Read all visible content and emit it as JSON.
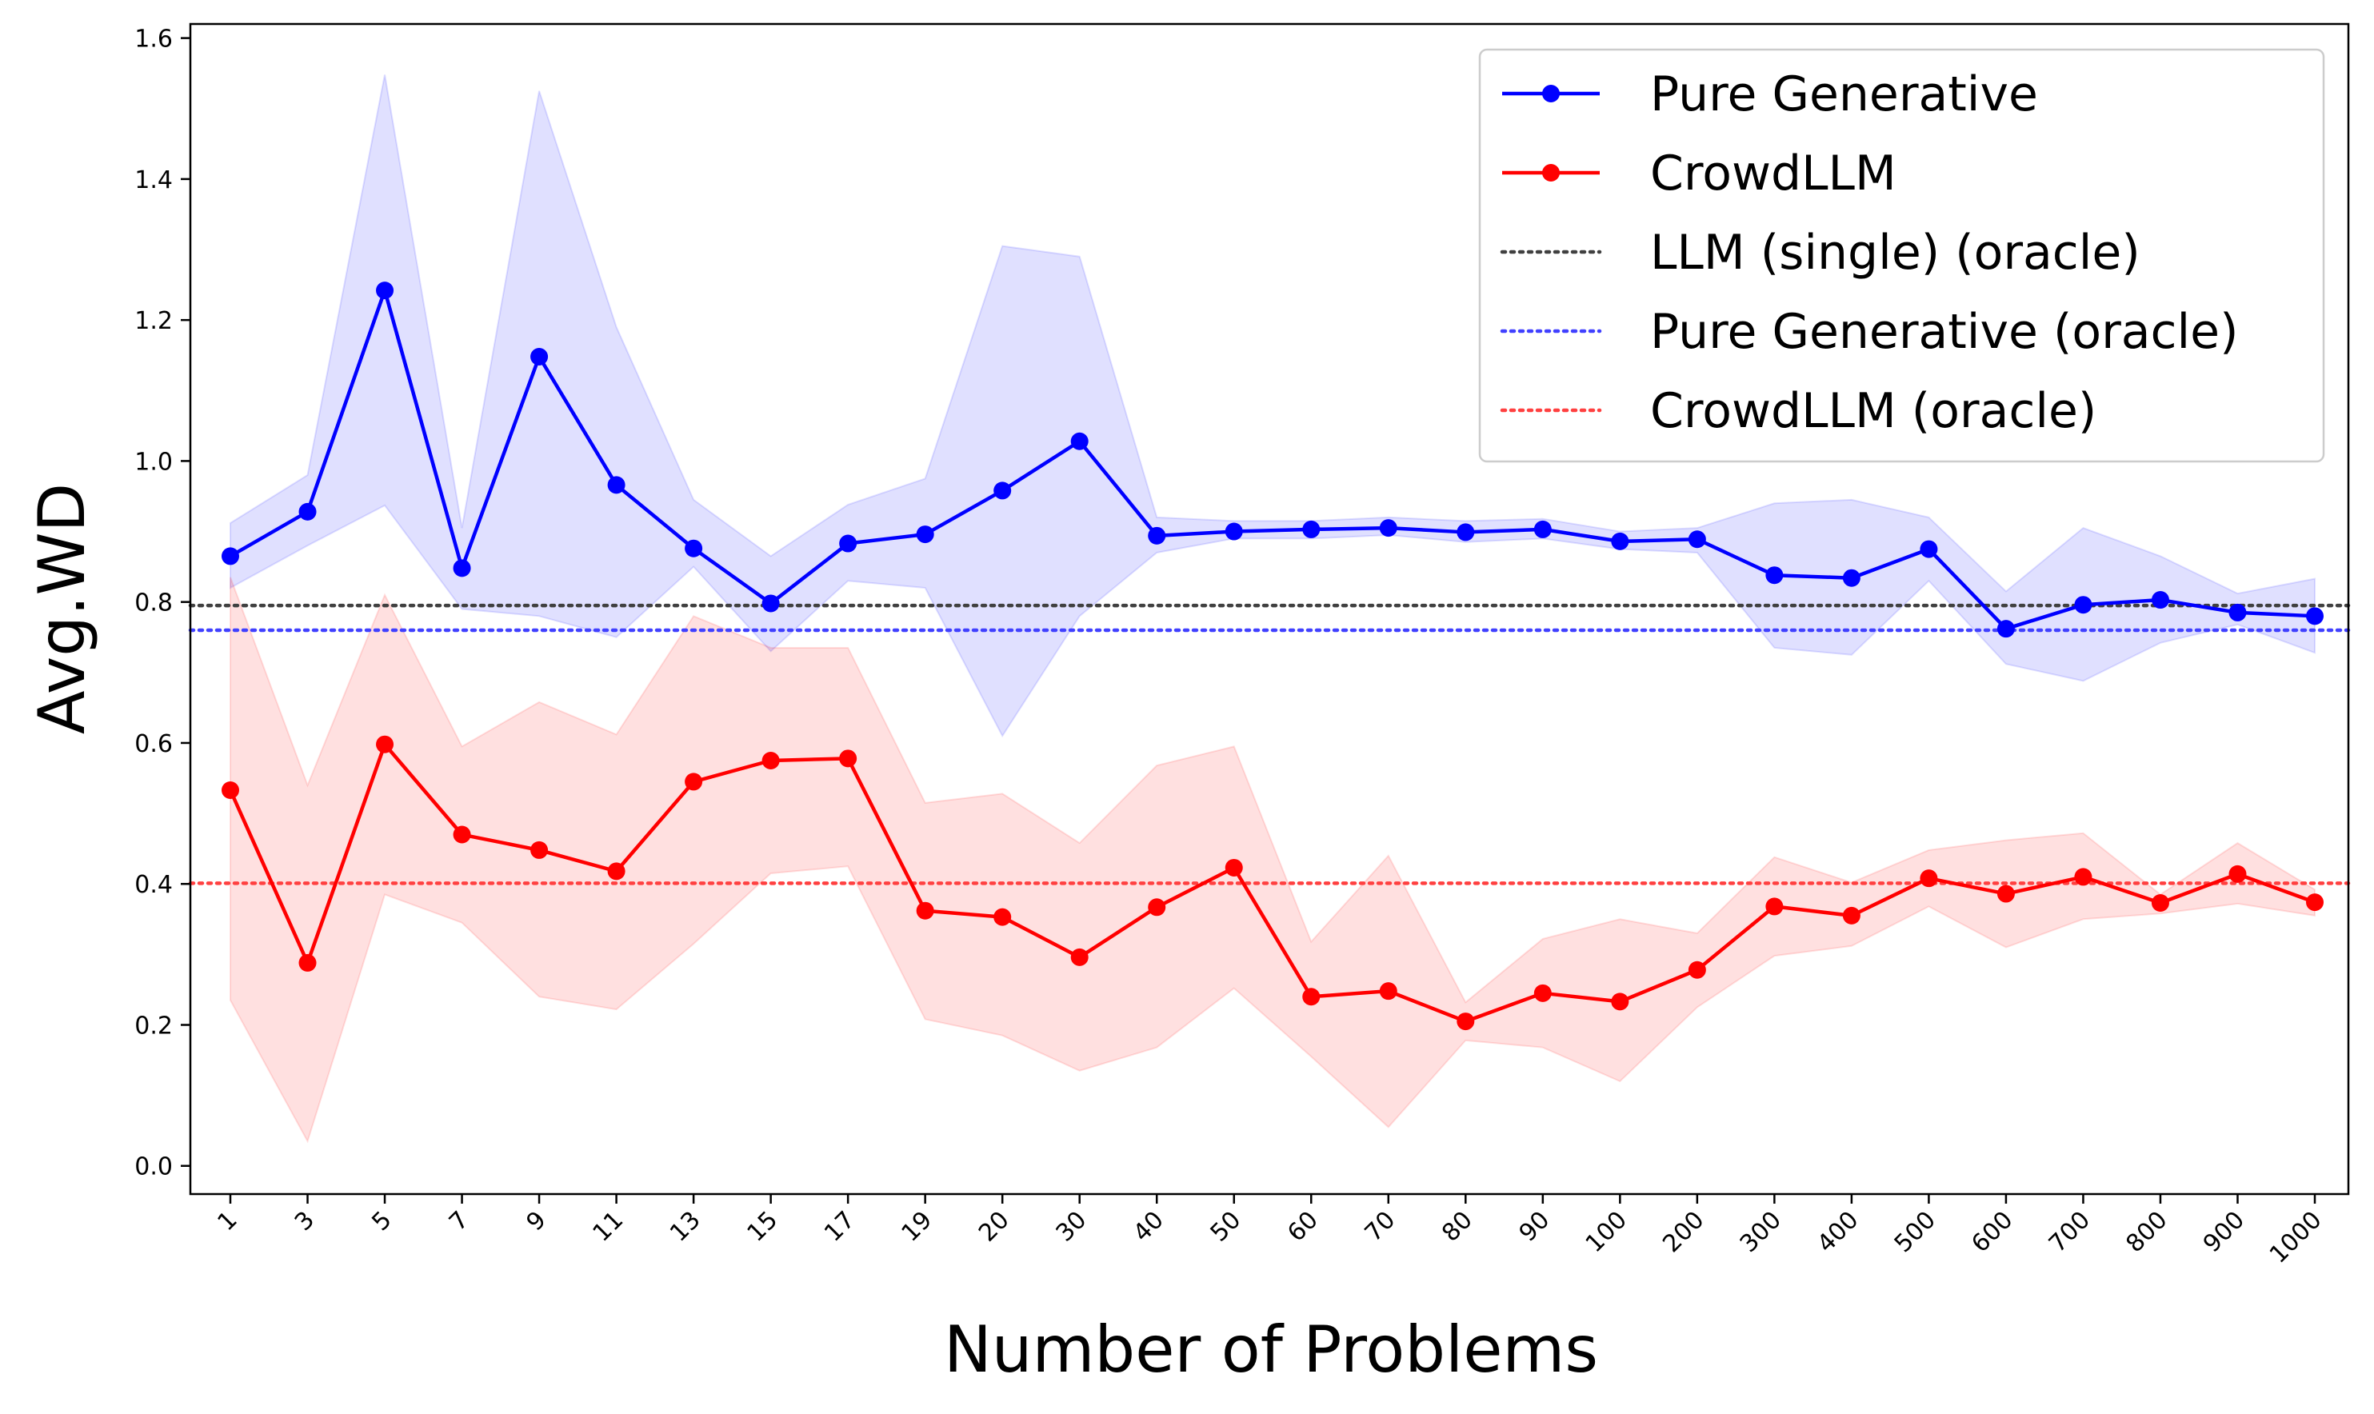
{
  "chart_data": {
    "type": "line",
    "title": "",
    "xlabel": "Number of Problems",
    "ylabel": "Avg.WD",
    "categories": [
      "1",
      "3",
      "5",
      "7",
      "9",
      "11",
      "13",
      "15",
      "17",
      "19",
      "20",
      "30",
      "40",
      "50",
      "60",
      "70",
      "80",
      "90",
      "100",
      "200",
      "300",
      "400",
      "500",
      "600",
      "700",
      "800",
      "900",
      "1000"
    ],
    "ylim": [
      -0.04,
      1.62
    ],
    "yticks": [
      "0.0",
      "0.2",
      "0.4",
      "0.6",
      "0.8",
      "1.0",
      "1.2",
      "1.4",
      "1.6"
    ],
    "grid": false,
    "legend_position": "top-right",
    "series": [
      {
        "name": "Pure Generative",
        "color": "#0000ff",
        "values": [
          0.865,
          0.928,
          1.242,
          0.848,
          1.148,
          0.966,
          0.876,
          0.798,
          0.883,
          0.896,
          0.958,
          1.028,
          0.894,
          0.9,
          0.903,
          0.905,
          0.899,
          0.903,
          0.886,
          0.889,
          0.838,
          0.834,
          0.875,
          0.762,
          0.796,
          0.803,
          0.785,
          0.78
        ],
        "lower": [
          0.82,
          0.88,
          0.937,
          0.79,
          0.78,
          0.75,
          0.85,
          0.73,
          0.83,
          0.82,
          0.61,
          0.78,
          0.87,
          0.89,
          0.89,
          0.895,
          0.885,
          0.89,
          0.875,
          0.87,
          0.735,
          0.725,
          0.83,
          0.712,
          0.688,
          0.742,
          0.768,
          0.728
        ],
        "upper": [
          0.912,
          0.98,
          1.548,
          0.905,
          1.525,
          1.19,
          0.945,
          0.865,
          0.938,
          0.975,
          1.305,
          1.29,
          0.92,
          0.915,
          0.915,
          0.92,
          0.915,
          0.918,
          0.9,
          0.905,
          0.94,
          0.945,
          0.92,
          0.815,
          0.905,
          0.865,
          0.812,
          0.833
        ]
      },
      {
        "name": "CrowdLLM",
        "color": "#ff0000",
        "values": [
          0.533,
          0.288,
          0.598,
          0.47,
          0.448,
          0.418,
          0.545,
          0.575,
          0.578,
          0.362,
          0.353,
          0.296,
          0.367,
          0.423,
          0.24,
          0.248,
          0.205,
          0.245,
          0.233,
          0.278,
          0.368,
          0.355,
          0.408,
          0.386,
          0.41,
          0.373,
          0.414,
          0.374
        ],
        "lower": [
          0.235,
          0.035,
          0.385,
          0.345,
          0.24,
          0.222,
          0.315,
          0.415,
          0.425,
          0.208,
          0.185,
          0.135,
          0.168,
          0.252,
          0.155,
          0.055,
          0.178,
          0.168,
          0.12,
          0.225,
          0.298,
          0.312,
          0.368,
          0.31,
          0.35,
          0.358,
          0.372,
          0.355
        ],
        "upper": [
          0.835,
          0.54,
          0.81,
          0.595,
          0.658,
          0.612,
          0.78,
          0.735,
          0.735,
          0.515,
          0.528,
          0.458,
          0.568,
          0.595,
          0.318,
          0.44,
          0.232,
          0.322,
          0.35,
          0.33,
          0.438,
          0.402,
          0.448,
          0.462,
          0.472,
          0.385,
          0.458,
          0.392
        ]
      }
    ],
    "reference_lines": [
      {
        "name": "LLM (single) (oracle)",
        "value": 0.795,
        "color": "#404040"
      },
      {
        "name": "Pure Generative (oracle)",
        "value": 0.76,
        "color": "#4040ff"
      },
      {
        "name": "CrowdLLM (oracle)",
        "value": 0.401,
        "color": "#ff4040"
      }
    ]
  }
}
